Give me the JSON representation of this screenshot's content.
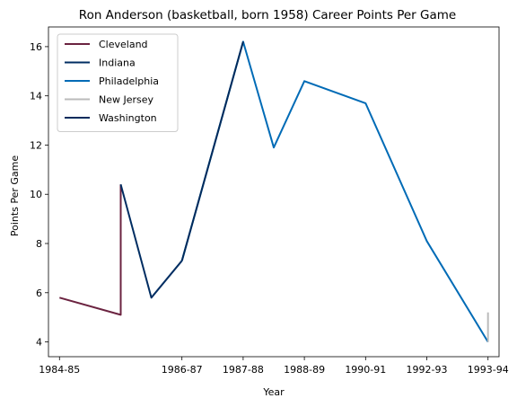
{
  "chart_data": {
    "type": "line",
    "title": "Ron Anderson (basketball, born 1958) Career Points Per Game",
    "xlabel": "Year",
    "ylabel": "Points Per Game",
    "x_ticks": [
      "1984-85",
      "1986-87",
      "1987-88",
      "1988-89",
      "1990-91",
      "1992-93",
      "1993-94"
    ],
    "x_tick_positions": [
      0,
      2,
      3,
      4,
      5,
      6,
      7
    ],
    "xlim": [
      -0.18,
      7.18
    ],
    "ylim": [
      3.4,
      16.8
    ],
    "y_ticks": [
      4,
      6,
      8,
      10,
      12,
      14,
      16
    ],
    "legend_position": "top-left",
    "series": [
      {
        "name": "Cleveland",
        "color": "#6b2340",
        "points": [
          [
            0,
            5.8
          ],
          [
            1,
            5.1
          ],
          [
            1,
            10.4
          ]
        ]
      },
      {
        "name": "Indiana",
        "color": "#002d62",
        "points": [
          [
            1,
            10.4
          ],
          [
            1.5,
            5.8
          ],
          [
            2,
            7.3
          ]
        ]
      },
      {
        "name": "Philadelphia",
        "color": "#006bb6",
        "points": [
          [
            2,
            7.3
          ],
          [
            3,
            16.2
          ],
          [
            3.5,
            11.9
          ],
          [
            4,
            14.6
          ],
          [
            5,
            13.7
          ],
          [
            6,
            8.1
          ],
          [
            7,
            4.0
          ]
        ]
      },
      {
        "name": "New Jersey",
        "color": "#bbbbbb",
        "points": [
          [
            7,
            4.0
          ],
          [
            7,
            5.2
          ]
        ]
      },
      {
        "name": "Washington",
        "color": "#002b5c",
        "points": [
          [
            2,
            7.3
          ],
          [
            3,
            16.2
          ]
        ]
      }
    ]
  }
}
